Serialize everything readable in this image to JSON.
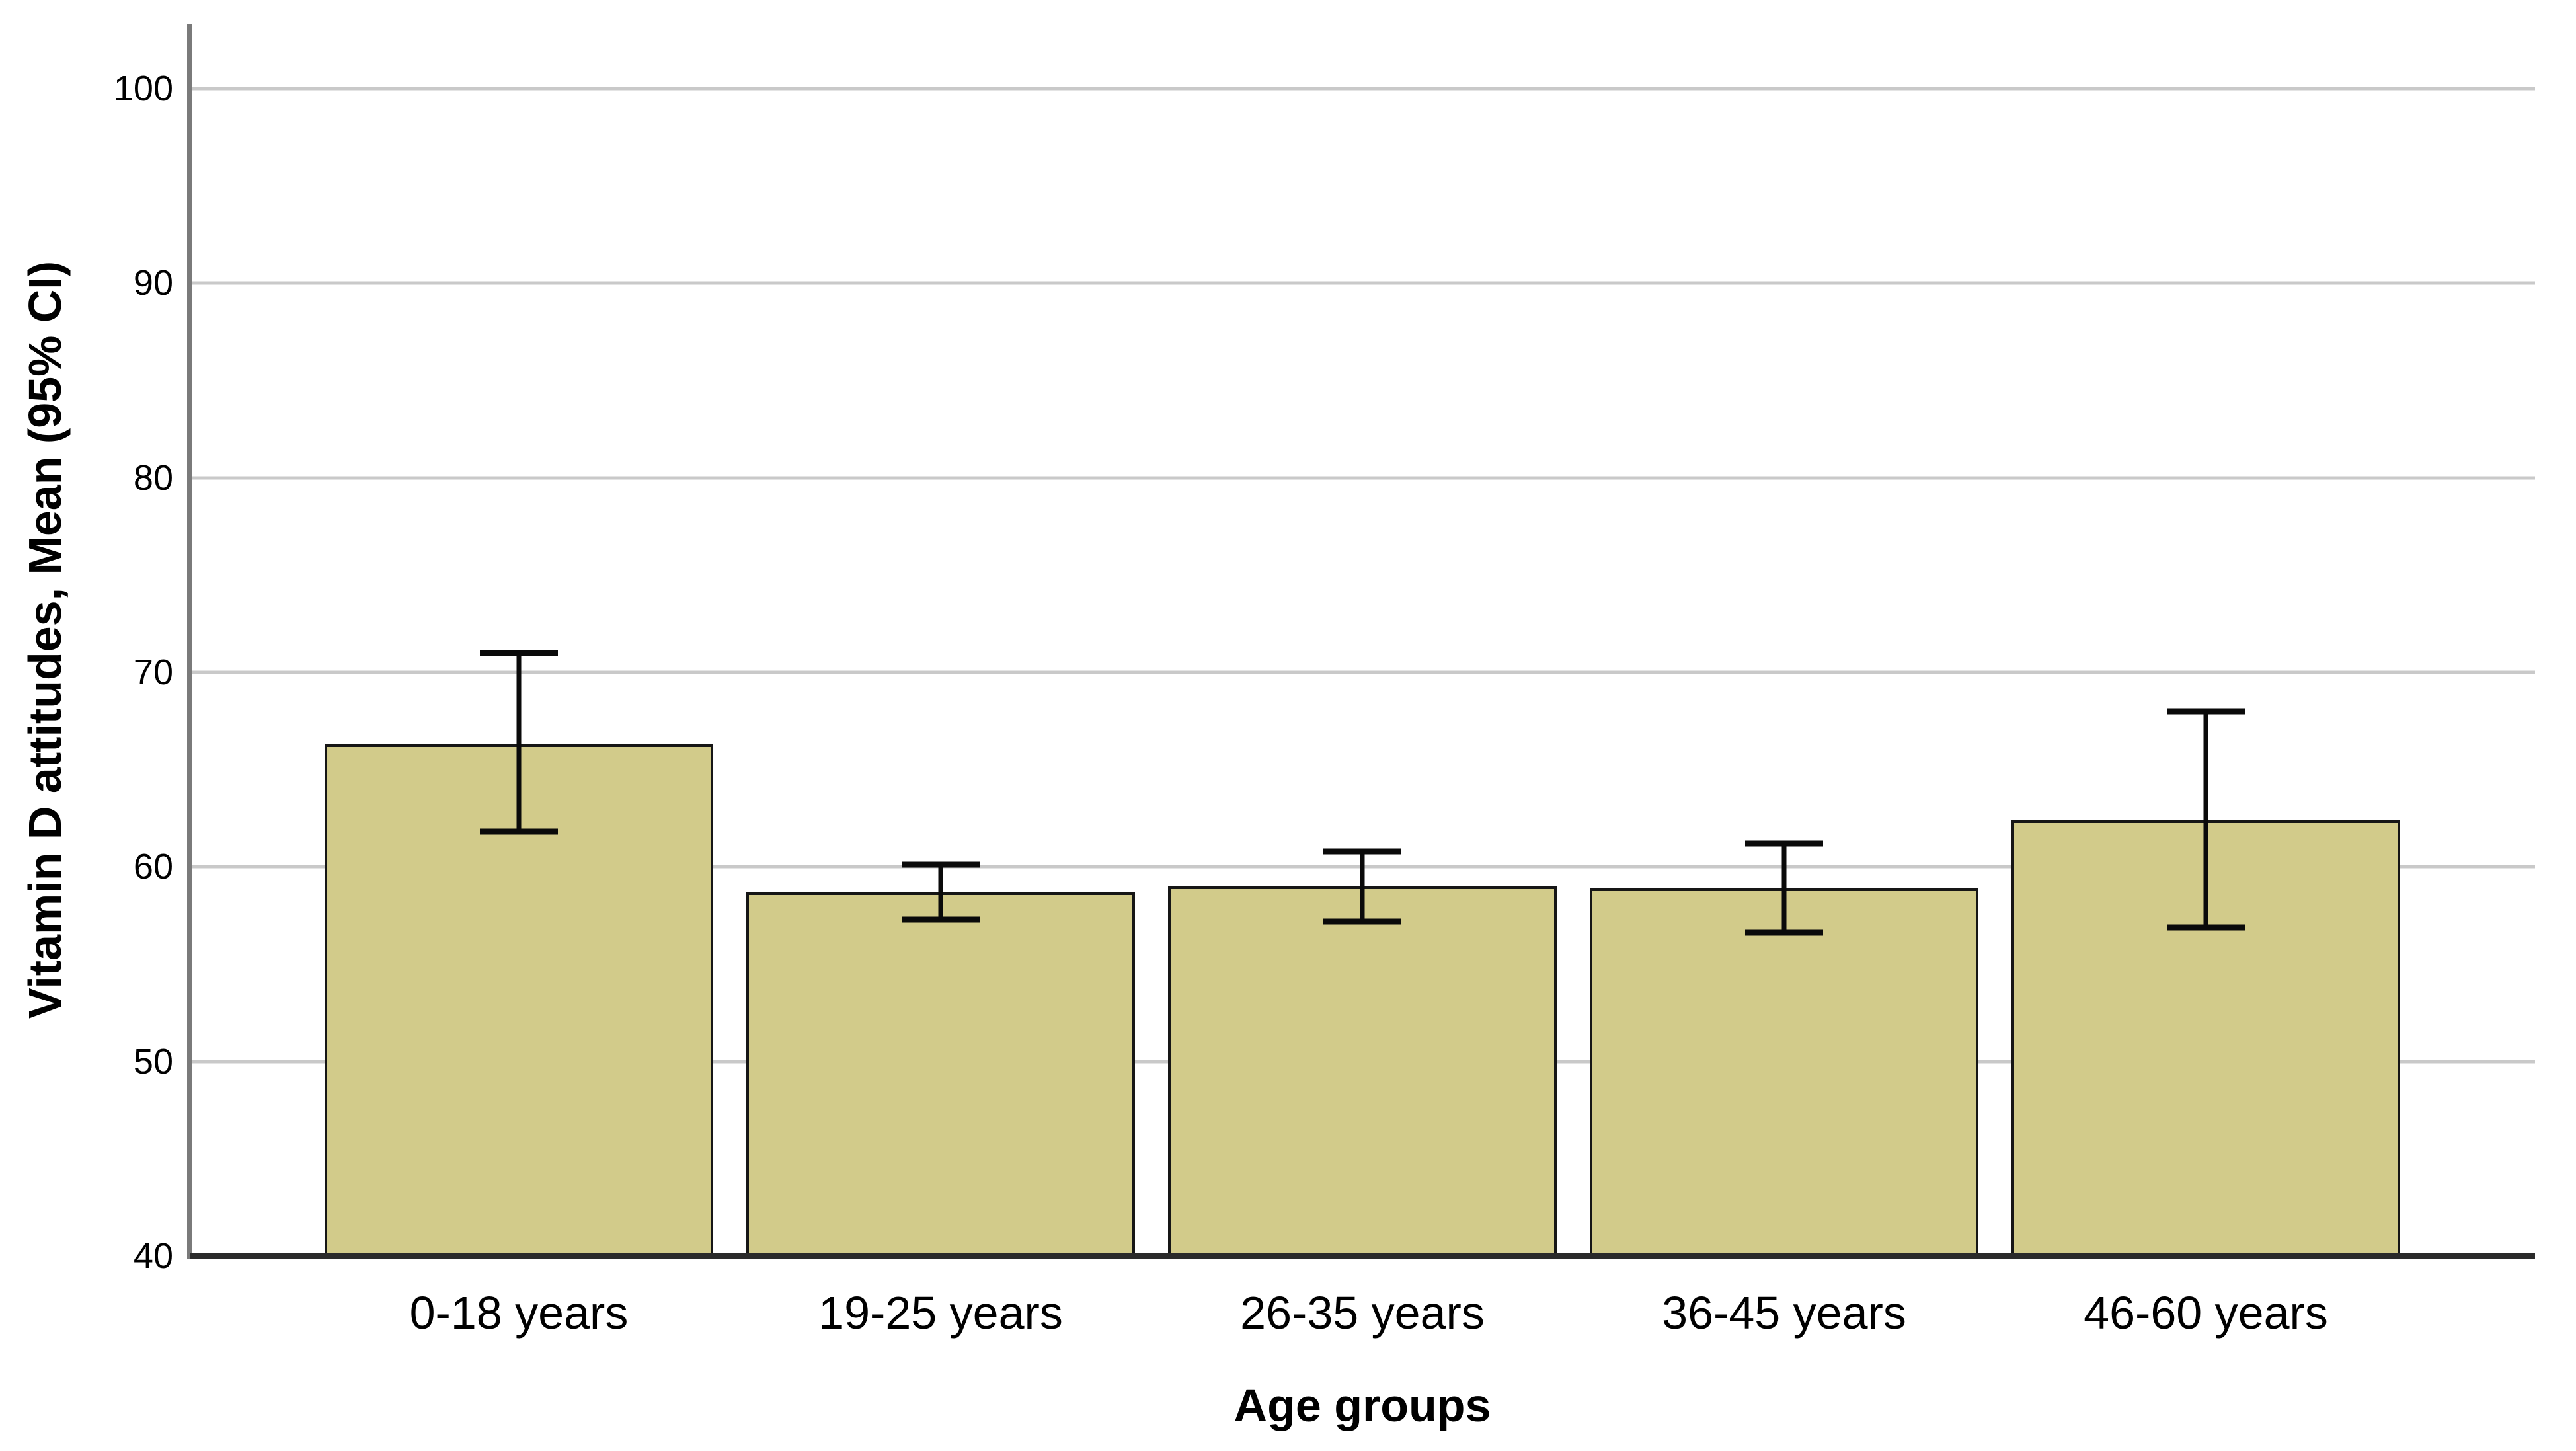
{
  "figure": {
    "background_color": "#ffffff"
  },
  "chart_data": {
    "type": "bar",
    "title": "",
    "xlabel": "Age groups",
    "ylabel": "Vitamin D attitudes, Mean (95% CI)",
    "categories": [
      "0-18 years",
      "19-25 years",
      "26-35 years",
      "36-45 years",
      "46-60 years"
    ],
    "values": [
      66.3,
      58.7,
      59.0,
      58.9,
      62.4
    ],
    "error_bars_95ci": [
      {
        "lower": 61.8,
        "upper": 71.0
      },
      {
        "lower": 57.3,
        "upper": 60.1
      },
      {
        "lower": 57.2,
        "upper": 60.8
      },
      {
        "lower": 56.6,
        "upper": 61.2
      },
      {
        "lower": 56.9,
        "upper": 68.0
      }
    ],
    "ylim": [
      40,
      100
    ],
    "yticks": [
      40,
      50,
      60,
      70,
      80,
      90,
      100
    ],
    "grid": "horizontal-gridlines-on",
    "legend": "none",
    "colors": {
      "bar_fill": "#d2cb8a",
      "bar_border": "#161616",
      "error_bar": "#0a0a0a",
      "gridline": "#c9c9c9",
      "y_axis_line": "#7a7a7a",
      "x_axis_line": "#2a2a2a",
      "text": "#000000"
    }
  }
}
